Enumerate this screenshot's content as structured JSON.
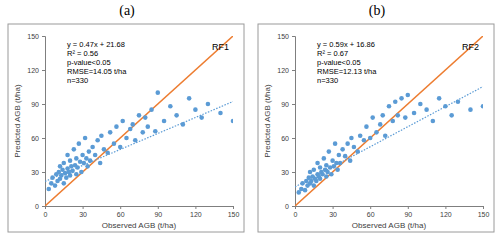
{
  "chart_data": [
    {
      "type": "scatter",
      "panel": "(a)",
      "title": "RF1",
      "x_label": "Observed AGB (t/ha)",
      "y_label": "Predicted AGB (t/ha)",
      "annotations": [
        "y = 0.47x + 21.68",
        "R² = 0.56",
        "p-value<0.05",
        "RMSE=14.05 t/ha",
        "n=330"
      ],
      "x": [
        3,
        5,
        6,
        8,
        9,
        10,
        11,
        12,
        12,
        13,
        14,
        15,
        15,
        16,
        17,
        18,
        18,
        19,
        20,
        20,
        21,
        22,
        23,
        24,
        25,
        25,
        26,
        27,
        28,
        29,
        30,
        31,
        32,
        33,
        34,
        35,
        36,
        38,
        40,
        42,
        44,
        45,
        47,
        50,
        52,
        55,
        57,
        60,
        62,
        65,
        68,
        70,
        72,
        75,
        78,
        80,
        82,
        85,
        88,
        90,
        95,
        100,
        105,
        110,
        115,
        120,
        125,
        130,
        140,
        150
      ],
      "values": [
        15,
        20,
        25,
        18,
        28,
        22,
        30,
        24,
        35,
        27,
        32,
        20,
        38,
        29,
        25,
        33,
        45,
        30,
        27,
        40,
        35,
        31,
        50,
        36,
        28,
        42,
        34,
        55,
        39,
        30,
        45,
        38,
        60,
        42,
        35,
        48,
        40,
        52,
        45,
        58,
        38,
        62,
        50,
        47,
        65,
        55,
        70,
        52,
        75,
        60,
        68,
        72,
        58,
        80,
        65,
        78,
        70,
        85,
        66,
        100,
        75,
        88,
        80,
        72,
        95,
        85,
        78,
        90,
        82,
        75
      ],
      "color": "#5b9bd5",
      "xlim": [
        0,
        150
      ],
      "ylim": [
        0,
        150
      ],
      "xticks": [
        0,
        30,
        60,
        90,
        120,
        150
      ],
      "yticks": [
        0,
        30,
        60,
        90,
        120,
        150
      ],
      "fit_line": {
        "slope": 0.47,
        "intercept": 21.68
      }
    },
    {
      "type": "scatter",
      "panel": "(b)",
      "title": "RF2",
      "x_label": "Observed AGB (t/ha)",
      "y_label": "Predicted AGB (t/ha)",
      "annotations": [
        "y = 0.59x + 16.86",
        "R² = 0.67",
        "p-value<0.05",
        "RMSE=12.13 t/ha",
        "n=330"
      ],
      "x": [
        3,
        5,
        6,
        8,
        9,
        10,
        11,
        12,
        12,
        13,
        14,
        15,
        15,
        16,
        17,
        18,
        18,
        19,
        20,
        20,
        21,
        22,
        23,
        24,
        25,
        25,
        26,
        27,
        28,
        29,
        30,
        31,
        32,
        33,
        34,
        35,
        36,
        38,
        40,
        42,
        44,
        45,
        47,
        50,
        52,
        55,
        57,
        60,
        62,
        65,
        68,
        70,
        72,
        75,
        78,
        80,
        82,
        85,
        88,
        90,
        95,
        100,
        105,
        110,
        115,
        120,
        125,
        130,
        140,
        150
      ],
      "values": [
        12,
        15,
        20,
        14,
        22,
        18,
        25,
        20,
        30,
        22,
        26,
        18,
        32,
        24,
        22,
        28,
        38,
        26,
        24,
        34,
        30,
        28,
        42,
        32,
        26,
        36,
        30,
        48,
        34,
        28,
        40,
        35,
        55,
        38,
        32,
        45,
        38,
        50,
        44,
        55,
        40,
        60,
        52,
        48,
        62,
        58,
        70,
        60,
        78,
        65,
        72,
        80,
        62,
        88,
        75,
        92,
        80,
        95,
        78,
        98,
        82,
        90,
        85,
        75,
        95,
        88,
        80,
        92,
        85,
        88
      ],
      "color": "#5b9bd5",
      "xlim": [
        0,
        150
      ],
      "ylim": [
        0,
        150
      ],
      "xticks": [
        0,
        30,
        60,
        90,
        120,
        150
      ],
      "yticks": [
        0,
        30,
        60,
        90,
        120,
        150
      ],
      "fit_line": {
        "slope": 0.59,
        "intercept": 16.86
      }
    }
  ]
}
